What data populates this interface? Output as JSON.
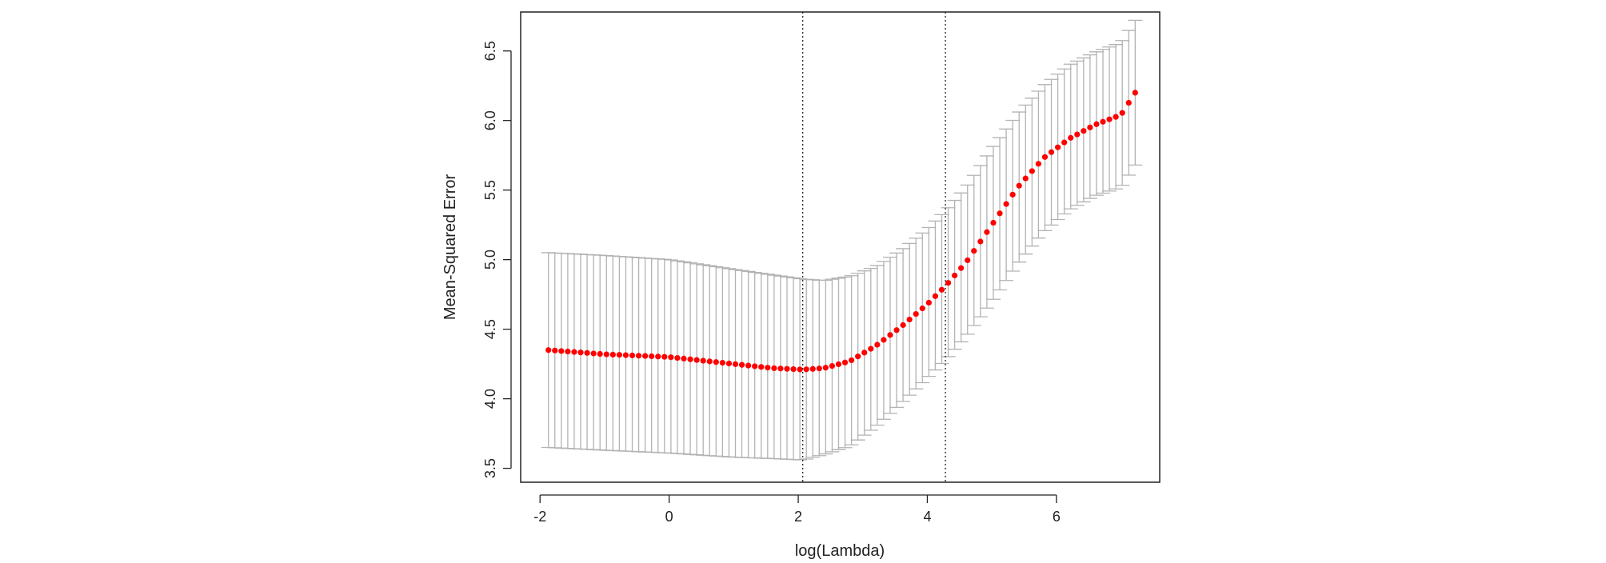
{
  "chart_data": {
    "type": "scatter",
    "title": "",
    "xlabel": "log(Lambda)",
    "ylabel": "Mean-Squared Error",
    "xlim": [
      -2.3,
      7.6
    ],
    "ylim": [
      3.4,
      6.78
    ],
    "x_ticks": [
      -2,
      0,
      2,
      4,
      6
    ],
    "x_tick_labels": [
      "-2",
      "0",
      "2",
      "4",
      "6"
    ],
    "y_ticks": [
      3.5,
      4.0,
      4.5,
      5.0,
      5.5,
      6.0,
      6.5
    ],
    "y_tick_labels": [
      "3.5",
      "4.0",
      "4.5",
      "5.0",
      "5.5",
      "6.0",
      "6.5"
    ],
    "grid": false,
    "legend": "none",
    "point_color": "#ff0000",
    "errorbar_color": "#b3b3b3",
    "vlines": [
      2.07,
      4.28
    ],
    "x_start": -1.87,
    "x_end": 7.22,
    "n_points": 92,
    "mse_anchor_x": [
      -1.87,
      -1.0,
      0.0,
      1.0,
      1.6,
      2.07,
      2.4,
      2.8,
      3.2,
      3.6,
      4.0,
      4.28,
      4.6,
      5.0,
      5.4,
      5.8,
      6.2,
      6.6,
      7.0,
      7.22
    ],
    "mse_anchor_y": [
      4.35,
      4.32,
      4.3,
      4.25,
      4.22,
      4.21,
      4.22,
      4.27,
      4.38,
      4.52,
      4.68,
      4.81,
      4.98,
      5.25,
      5.52,
      5.73,
      5.87,
      5.97,
      6.04,
      6.2
    ],
    "upper_anchor_y": [
      5.05,
      5.03,
      5.0,
      4.93,
      4.89,
      4.86,
      4.85,
      4.88,
      4.95,
      5.07,
      5.22,
      5.35,
      5.52,
      5.8,
      6.05,
      6.25,
      6.4,
      6.49,
      6.56,
      6.72
    ],
    "lower_anchor_y": [
      3.65,
      3.63,
      3.61,
      3.58,
      3.57,
      3.56,
      3.6,
      3.66,
      3.8,
      3.97,
      4.15,
      4.28,
      4.45,
      4.7,
      4.97,
      5.2,
      5.36,
      5.46,
      5.52,
      5.68
    ]
  }
}
